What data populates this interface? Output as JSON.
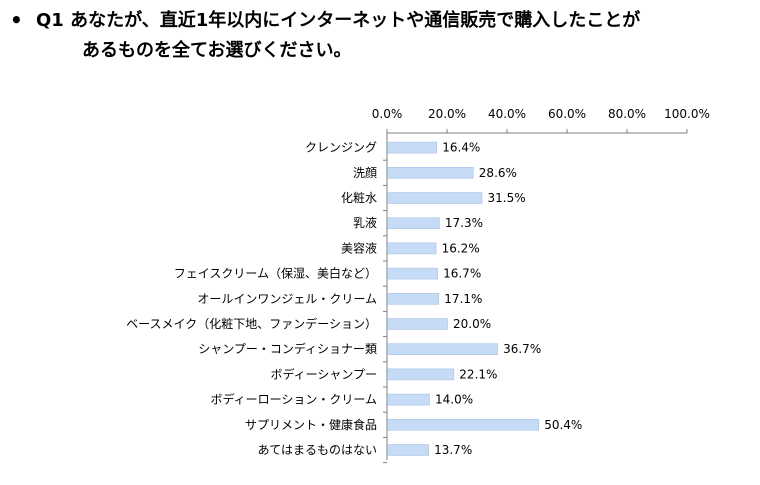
{
  "title": {
    "bullet": "•",
    "line1": "Q1 あなたが、直近1年以内にインターネットや通信販売で購入したことが",
    "line2": "あるものを全てお選びください。"
  },
  "chart_data": {
    "type": "bar",
    "orientation": "horizontal",
    "categories": [
      "クレンジング",
      "洗顔",
      "化粧水",
      "乳液",
      "美容液",
      "フェイスクリーム（保湿、美白など）",
      "オールインワンジェル・クリーム",
      "ベースメイク（化粧下地、ファンデーション）",
      "シャンプー・コンディショナー類",
      "ボディーシャンプー",
      "ボディーローション・クリーム",
      "サプリメント・健康食品",
      "あてはまるものはない"
    ],
    "values": [
      16.4,
      28.6,
      31.5,
      17.3,
      16.2,
      16.7,
      17.1,
      20.0,
      36.7,
      22.1,
      14.0,
      50.4,
      13.7
    ],
    "value_labels": [
      "16.4%",
      "28.6%",
      "31.5%",
      "17.3%",
      "16.2%",
      "16.7%",
      "17.1%",
      "20.0%",
      "36.7%",
      "22.1%",
      "14.0%",
      "50.4%",
      "13.7%"
    ],
    "xlim": [
      0,
      100
    ],
    "ticks": [
      0,
      20,
      40,
      60,
      80,
      100
    ],
    "tick_labels": [
      "0.0%",
      "20.0%",
      "40.0%",
      "60.0%",
      "80.0%",
      "100.0%"
    ],
    "axis_position": "top",
    "grid": false,
    "bar_color": "#c6dbf5",
    "bar_edge_color": "#a9c4e6",
    "axis_color": "#7f7f7f"
  }
}
